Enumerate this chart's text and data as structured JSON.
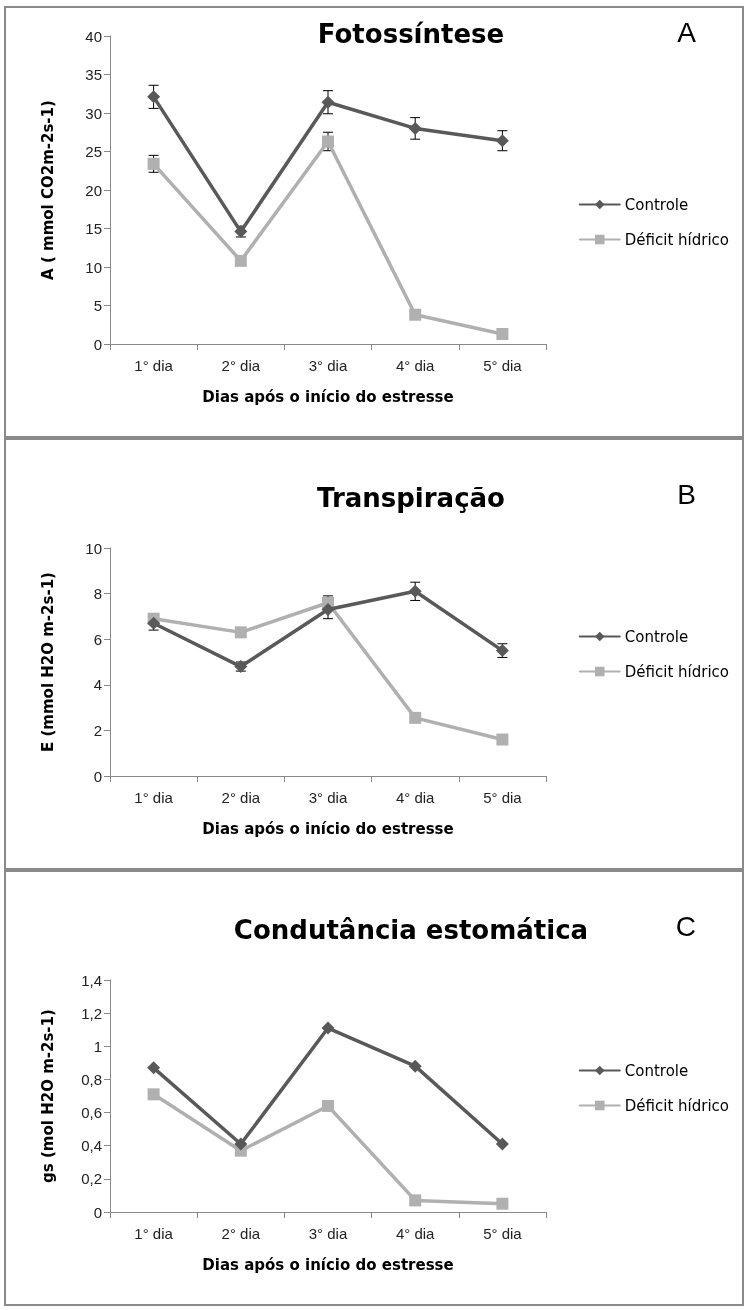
{
  "chart_data": [
    {
      "type": "line",
      "title": "Fotossíntese",
      "xlabel": "Dias após o início do estresse",
      "ylabel": "A ( mmol CO2m-2s-1)",
      "annotations": [
        "A"
      ],
      "categories": [
        "1° dia",
        "2° dia",
        "3° dia",
        "4° dia",
        "5° dia"
      ],
      "ylim": [
        0,
        40
      ],
      "yticks": [
        0,
        5,
        10,
        15,
        20,
        25,
        30,
        35,
        40
      ],
      "grid": false,
      "legend": "right",
      "line_style": "solid",
      "series": [
        {
          "name": "Controle",
          "color": "#595959",
          "marker": "diamond",
          "values": [
            32.1,
            14.6,
            31.4,
            28.0,
            26.4
          ],
          "errors": [
            1.5,
            0.7,
            1.5,
            1.4,
            1.3
          ]
        },
        {
          "name": "Déficit hídrico",
          "color": "#b0b0b0",
          "marker": "square",
          "values": [
            23.4,
            10.8,
            26.3,
            3.8,
            1.3
          ],
          "errors": [
            1.1,
            null,
            1.2,
            null,
            null
          ]
        }
      ]
    },
    {
      "type": "line",
      "title": "Transpiração",
      "xlabel": "Dias após o início do estresse",
      "ylabel": "E (mmol H2O m-2s-1)",
      "annotations": [
        "B"
      ],
      "categories": [
        "1° dia",
        "2° dia",
        "3° dia",
        "4° dia",
        "5° dia"
      ],
      "ylim": [
        0,
        10
      ],
      "yticks": [
        0,
        2,
        4,
        6,
        8,
        10
      ],
      "grid": false,
      "legend": "right",
      "line_style": "solid",
      "series": [
        {
          "name": "Controle",
          "color": "#595959",
          "marker": "diamond",
          "values": [
            6.7,
            4.8,
            7.3,
            8.1,
            5.5
          ],
          "errors": [
            0.3,
            0.2,
            0.4,
            0.4,
            0.3
          ]
        },
        {
          "name": "Déficit hídrico",
          "color": "#b0b0b0",
          "marker": "square",
          "values": [
            6.9,
            6.3,
            7.6,
            2.55,
            1.6
          ],
          "errors": [
            null,
            null,
            0.3,
            null,
            null
          ]
        }
      ]
    },
    {
      "type": "line",
      "title": "Condutância estomática",
      "xlabel": "Dias após o início do estresse",
      "ylabel": "gs (mol H2O m-2s-1)",
      "annotations": [
        "C"
      ],
      "categories": [
        "1° dia",
        "2° dia",
        "3° dia",
        "4° dia",
        "5° dia"
      ],
      "ylim": [
        0,
        1.4
      ],
      "yticks": [
        0,
        {
          "value": 0.2,
          "label": "0,2"
        },
        {
          "value": 0.4,
          "label": "0,4"
        },
        {
          "value": 0.6,
          "label": "0,6"
        },
        {
          "value": 0.8,
          "label": "0,8"
        },
        1,
        {
          "value": 1.2,
          "label": "1,2"
        },
        {
          "value": 1.4,
          "label": "1,4"
        }
      ],
      "grid": false,
      "legend": "right",
      "line_style": "solid",
      "series": [
        {
          "name": "Controle",
          "color": "#595959",
          "marker": "diamond",
          "values": [
            0.87,
            0.41,
            1.11,
            0.88,
            0.41
          ]
        },
        {
          "name": "Déficit hídrico",
          "color": "#b0b0b0",
          "marker": "square",
          "values": [
            0.71,
            0.37,
            0.64,
            0.07,
            0.05
          ]
        }
      ]
    }
  ]
}
